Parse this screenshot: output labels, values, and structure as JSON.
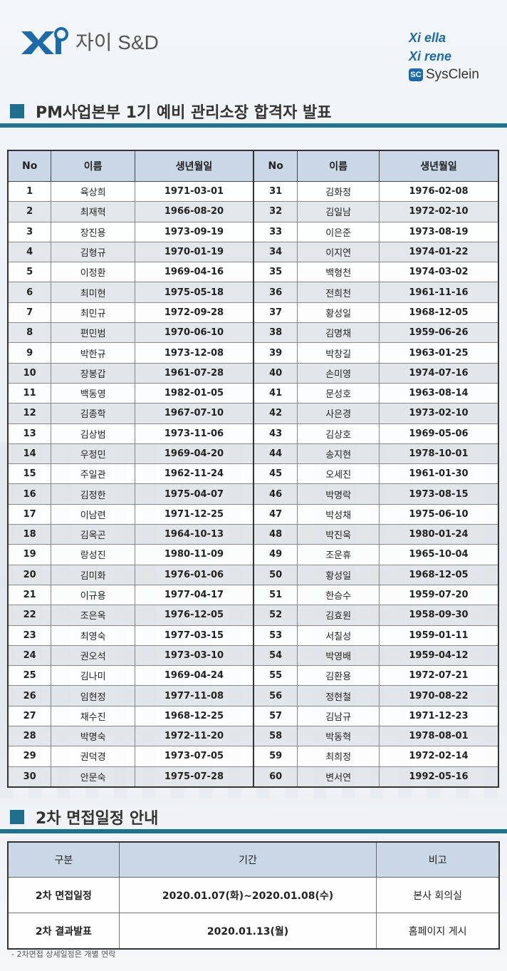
{
  "header": {
    "logo_text": "자이 S&D",
    "brands": [
      "Xi ella",
      "Xi rene",
      "SysClein"
    ],
    "brand_color": "#1e6aa8"
  },
  "section1": {
    "title": "PM사업본부 1기 예비 관리소장 합격자 발표",
    "headers": [
      "No",
      "이름",
      "생년월일",
      "No",
      "이름",
      "생년월일"
    ],
    "rows": [
      [
        "1",
        "육상희",
        "1971-03-01",
        "31",
        "김화정",
        "1976-02-08"
      ],
      [
        "2",
        "최재혁",
        "1966-08-20",
        "32",
        "김일남",
        "1972-02-10"
      ],
      [
        "3",
        "장진용",
        "1973-09-19",
        "33",
        "이은준",
        "1973-08-19"
      ],
      [
        "4",
        "김형규",
        "1970-01-19",
        "34",
        "이지연",
        "1974-01-22"
      ],
      [
        "5",
        "이정환",
        "1969-04-16",
        "35",
        "백형천",
        "1974-03-02"
      ],
      [
        "6",
        "최미현",
        "1975-05-18",
        "36",
        "전희천",
        "1961-11-16"
      ],
      [
        "7",
        "최민규",
        "1972-09-28",
        "37",
        "황성일",
        "1968-12-05"
      ],
      [
        "8",
        "편민범",
        "1970-06-10",
        "38",
        "김명채",
        "1959-06-26"
      ],
      [
        "9",
        "박한규",
        "1973-12-08",
        "39",
        "박창길",
        "1963-01-25"
      ],
      [
        "10",
        "장봉갑",
        "1961-07-28",
        "40",
        "손미영",
        "1974-07-16"
      ],
      [
        "11",
        "백동영",
        "1982-01-05",
        "41",
        "문성호",
        "1963-08-14"
      ],
      [
        "12",
        "김종학",
        "1967-07-10",
        "42",
        "사은경",
        "1973-02-10"
      ],
      [
        "13",
        "김상범",
        "1973-11-06",
        "43",
        "김상호",
        "1969-05-06"
      ],
      [
        "14",
        "우정민",
        "1969-04-20",
        "44",
        "송지현",
        "1978-10-01"
      ],
      [
        "15",
        "주일관",
        "1962-11-24",
        "45",
        "오세진",
        "1961-01-30"
      ],
      [
        "16",
        "김정한",
        "1975-04-07",
        "46",
        "박명락",
        "1973-08-15"
      ],
      [
        "17",
        "이남련",
        "1971-12-25",
        "47",
        "박성채",
        "1975-06-10"
      ],
      [
        "18",
        "김옥곤",
        "1964-10-13",
        "48",
        "박진욱",
        "1980-01-24"
      ],
      [
        "19",
        "랑성진",
        "1980-11-09",
        "49",
        "조운휴",
        "1965-10-04"
      ],
      [
        "20",
        "김미화",
        "1976-01-06",
        "50",
        "황성일",
        "1968-12-05"
      ],
      [
        "21",
        "이규용",
        "1977-04-17",
        "51",
        "한승수",
        "1959-07-20"
      ],
      [
        "22",
        "조은옥",
        "1976-12-05",
        "52",
        "김효원",
        "1958-09-30"
      ],
      [
        "23",
        "최영숙",
        "1977-03-15",
        "53",
        "서칠성",
        "1959-01-11"
      ],
      [
        "24",
        "권오석",
        "1973-03-10",
        "54",
        "박영배",
        "1959-04-12"
      ],
      [
        "25",
        "김나미",
        "1969-04-24",
        "55",
        "김환용",
        "1972-07-21"
      ],
      [
        "26",
        "임현정",
        "1977-11-08",
        "56",
        "정현철",
        "1970-08-22"
      ],
      [
        "27",
        "채수진",
        "1968-12-25",
        "57",
        "김남규",
        "1971-12-23"
      ],
      [
        "28",
        "박명숙",
        "1972-11-20",
        "58",
        "박동혁",
        "1978-08-01"
      ],
      [
        "29",
        "권덕경",
        "1973-07-05",
        "59",
        "최희정",
        "1972-02-14"
      ],
      [
        "30",
        "안문숙",
        "1975-07-28",
        "60",
        "변서연",
        "1992-05-16"
      ]
    ]
  },
  "section2": {
    "title": "2차 면접일정 안내",
    "headers": [
      "구분",
      "기간",
      "비고"
    ],
    "rows": [
      [
        "2차 면접일정",
        "2020.01.07(화)~2020.01.08(수)",
        "본사 회의실"
      ],
      [
        "2차 결과발표",
        "2020.01.13(월)",
        "홈페이지 게시"
      ]
    ],
    "note": "- 2차면접 상세일정은 개별 연락"
  },
  "colors": {
    "accent": "#1f7390",
    "header_bg": "#c9d7e7"
  }
}
